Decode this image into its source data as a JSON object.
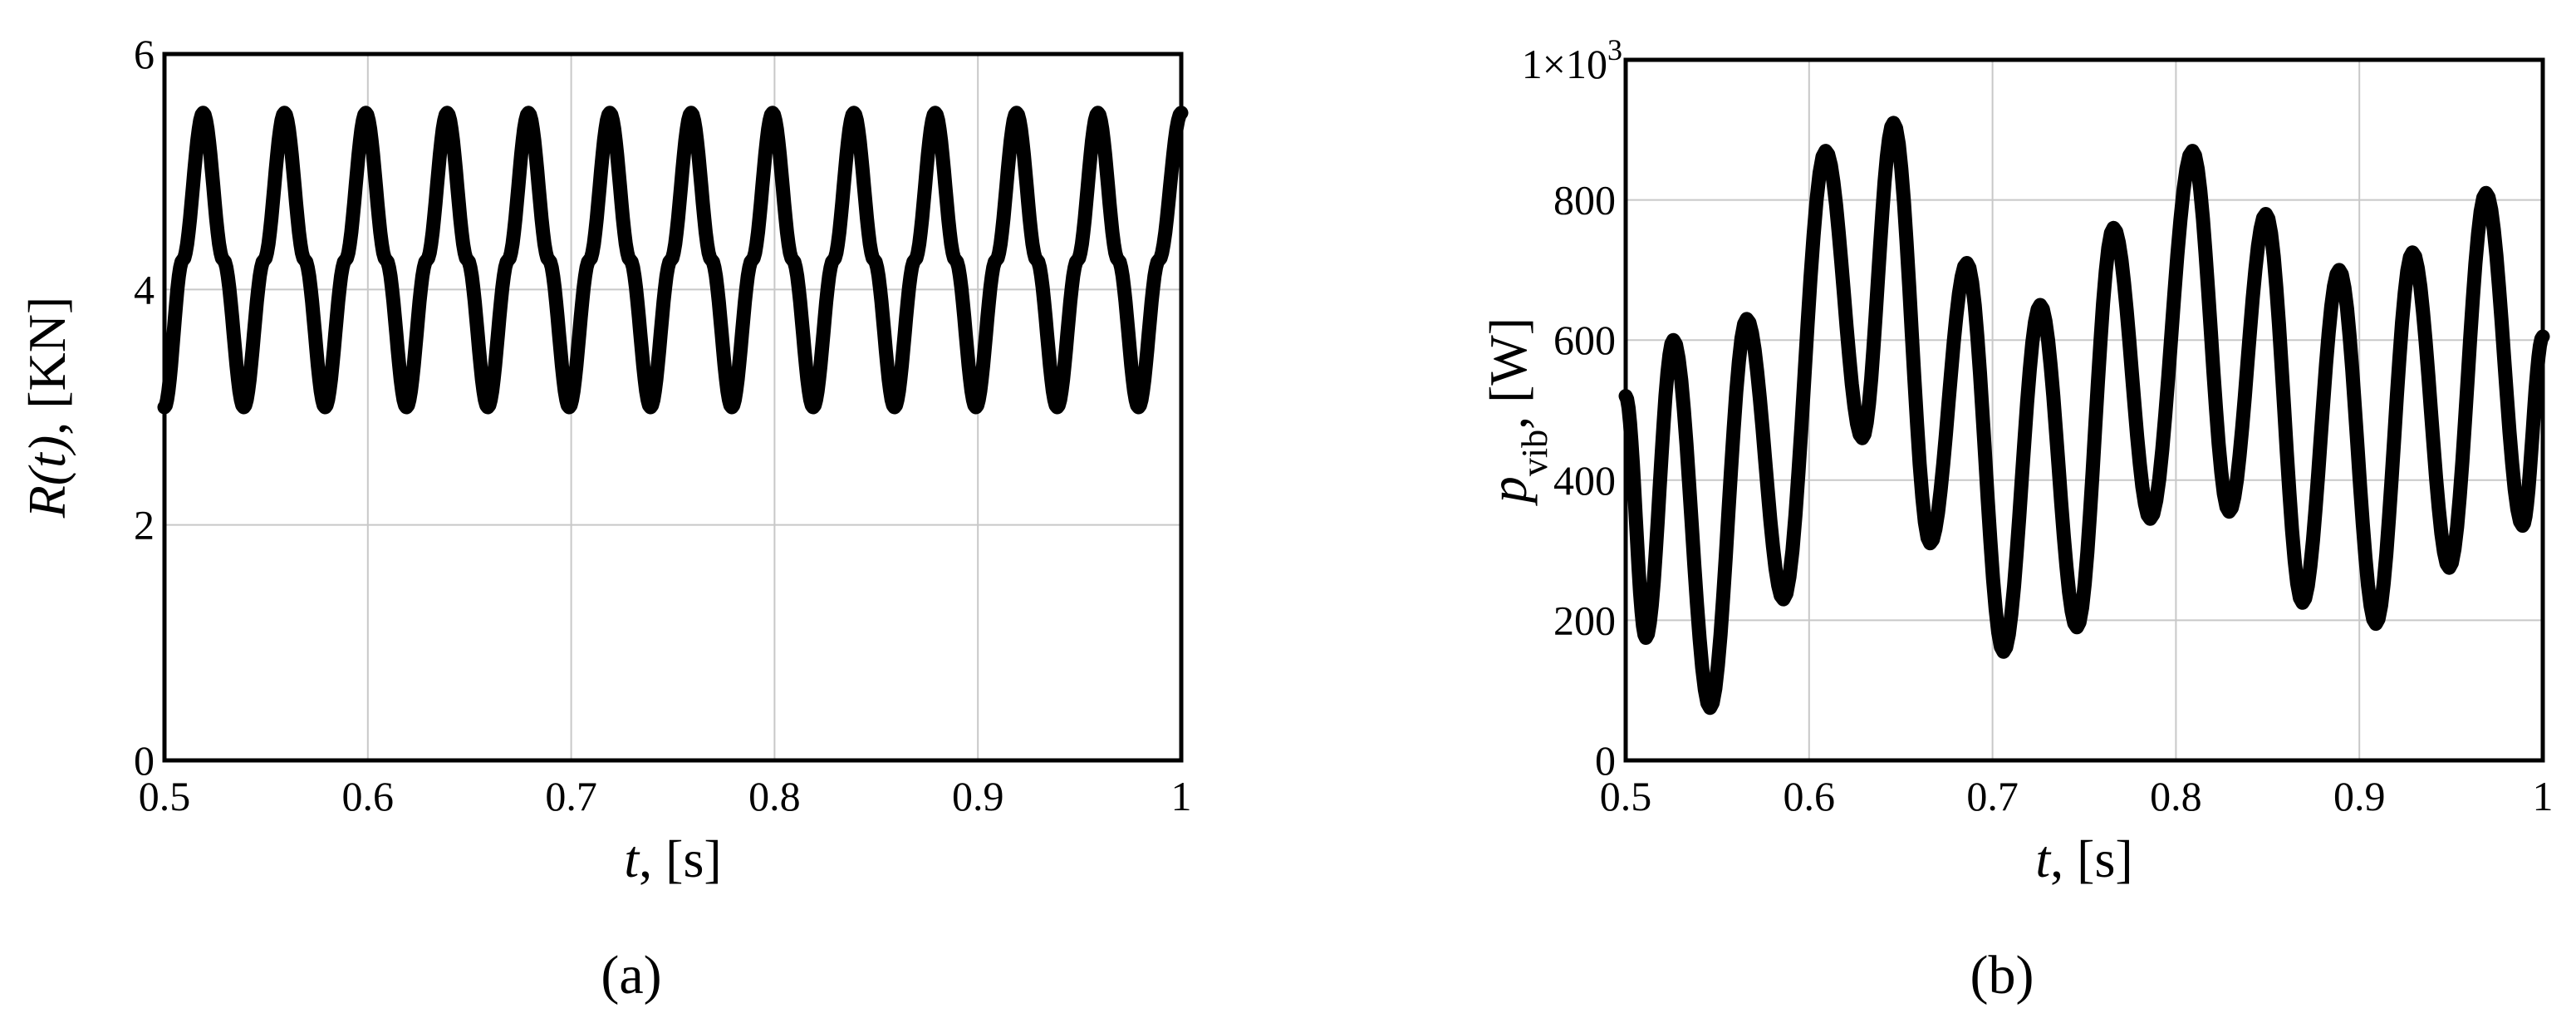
{
  "chart_data": [
    {
      "panel": "(a)",
      "type": "line",
      "xlabel": {
        "var": "t",
        "unit": ", [s]"
      },
      "ylabel": {
        "var": "R(t)",
        "unit": ", [KN]"
      },
      "xlim": [
        0.5,
        1
      ],
      "ylim": [
        0,
        6
      ],
      "xticks": [
        0.5,
        0.6,
        0.7,
        0.8,
        0.9,
        1
      ],
      "xtick_labels": [
        "0.5",
        "0.6",
        "0.7",
        "0.8",
        "0.9",
        "1"
      ],
      "yticks": [
        0,
        2,
        4,
        6
      ],
      "ytick_labels": [
        "0",
        "2",
        "4",
        "6"
      ],
      "grid": true,
      "line_color": "#000000",
      "series": [
        {
          "x": [
            0.5,
            0.509,
            0.519,
            0.529,
            0.539,
            0.549,
            0.559,
            0.569,
            0.579,
            0.589,
            0.599,
            0.609,
            0.619,
            0.629,
            0.639,
            0.649,
            0.659,
            0.669,
            0.679,
            0.689,
            0.699,
            0.709,
            0.719,
            0.729,
            0.739,
            0.749,
            0.759,
            0.769,
            0.779,
            0.789,
            0.799,
            0.809,
            0.819,
            0.829,
            0.839,
            0.849,
            0.859,
            0.869,
            0.879,
            0.889,
            0.899,
            0.909,
            0.919,
            0.929,
            0.939,
            0.949,
            0.959,
            0.969,
            0.979,
            0.989,
            1.0
          ],
          "y": [
            3.0,
            4.25,
            5.5,
            4.25,
            3.0,
            4.25,
            5.5,
            4.25,
            3.0,
            4.25,
            5.5,
            4.25,
            3.0,
            4.25,
            5.5,
            4.25,
            3.0,
            4.25,
            5.5,
            4.25,
            3.0,
            4.25,
            5.5,
            4.25,
            3.0,
            4.25,
            5.5,
            4.25,
            3.0,
            4.25,
            5.5,
            4.25,
            3.0,
            4.25,
            5.5,
            4.25,
            3.0,
            4.25,
            5.5,
            4.25,
            3.0,
            4.25,
            5.5,
            4.25,
            3.0,
            4.25,
            5.5,
            4.25,
            3.0,
            4.25,
            5.5
          ]
        }
      ]
    },
    {
      "panel": "(b)",
      "type": "line",
      "xlabel": {
        "var": "t",
        "unit": ", [s]"
      },
      "ylabel": {
        "var": "p",
        "sub": "vib",
        "unit": ", [W]"
      },
      "xlim": [
        0.5,
        1
      ],
      "ylim": [
        0,
        1000
      ],
      "xticks": [
        0.5,
        0.6,
        0.7,
        0.8,
        0.9,
        1
      ],
      "xtick_labels": [
        "0.5",
        "0.6",
        "0.7",
        "0.8",
        "0.9",
        "1"
      ],
      "yticks": [
        0,
        200,
        400,
        600,
        800,
        1000
      ],
      "ytick_labels": [
        "0",
        "200",
        "400",
        "600",
        "800",
        "1×10"
      ],
      "ytick_top_exponent": "3",
      "grid": true,
      "line_color": "#000000",
      "series": [
        {
          "x": [
            0.5,
            0.511,
            0.526,
            0.546,
            0.566,
            0.586,
            0.609,
            0.629,
            0.646,
            0.666,
            0.686,
            0.706,
            0.726,
            0.746,
            0.766,
            0.786,
            0.809,
            0.829,
            0.849,
            0.869,
            0.889,
            0.909,
            0.929,
            0.949,
            0.969,
            0.989,
            1.0
          ],
          "y": [
            520,
            175,
            600,
            75,
            630,
            230,
            870,
            460,
            910,
            310,
            710,
            155,
            650,
            190,
            760,
            345,
            870,
            355,
            780,
            225,
            700,
            195,
            725,
            275,
            810,
            335,
            605
          ]
        }
      ]
    }
  ]
}
